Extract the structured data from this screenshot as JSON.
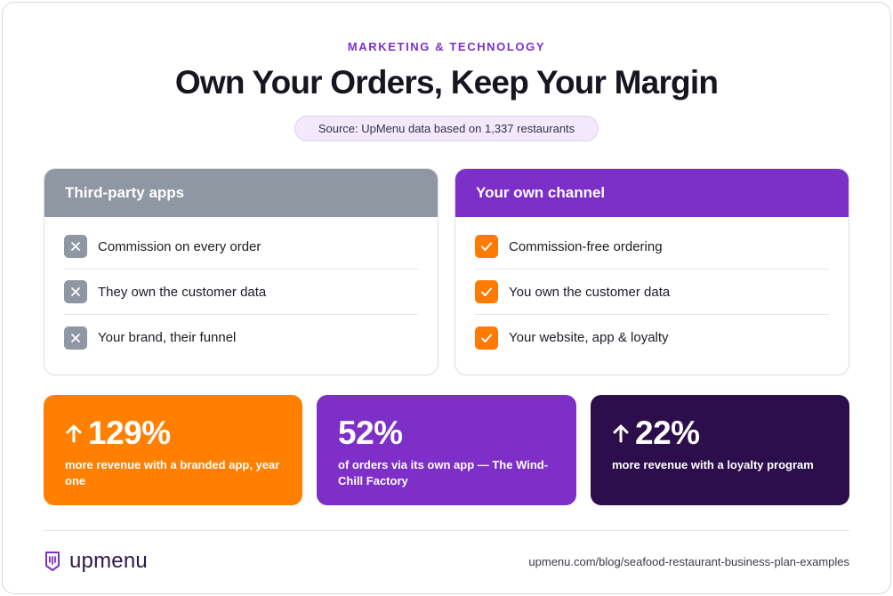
{
  "header": {
    "eyebrow": "MARKETING & TECHNOLOGY",
    "title": "Own Your Orders, Keep Your Margin",
    "source": "Source: UpMenu data based on 1,337 restaurants"
  },
  "comparison": {
    "left": {
      "title": "Third-party apps",
      "icon": "x-icon",
      "color": "#8f97a3",
      "items": [
        "Commission on every order",
        "They own the customer data",
        "Your brand, their funnel"
      ]
    },
    "right": {
      "title": "Your own channel",
      "icon": "check-icon",
      "color": "#7c2ec9",
      "items": [
        "Commission-free ordering",
        "You own the customer data",
        "Your website, app & loyalty"
      ]
    }
  },
  "stats": [
    {
      "value": "129%",
      "arrow": true,
      "description": "more revenue with a branded app, year one",
      "color": "#ff7f00"
    },
    {
      "value": "52%",
      "arrow": false,
      "description": "of orders via its own app — The Wind-Chill Factory",
      "color": "#7d2fc8"
    },
    {
      "value": "22%",
      "arrow": true,
      "description": "more revenue with a loyalty program",
      "color": "#2b0e4b"
    }
  ],
  "footer": {
    "logo_text": "upmenu",
    "url": "upmenu.com/blog/seafood-restaurant-business-plan-examples"
  }
}
